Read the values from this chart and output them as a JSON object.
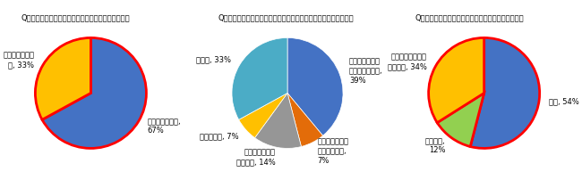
{
  "chart1": {
    "title": "Q）むかし使っていた携帯電話を今もお持ちですか？",
    "labels": [
      "まだ持っている,\n67%",
      "もう持っていな\nい, 33%"
    ],
    "sizes": [
      67,
      33
    ],
    "colors": [
      "#4472C4",
      "#FFC000"
    ],
    "startangle": 90,
    "border_color": "red",
    "border_width": 2.0,
    "has_border": true
  },
  "chart2": {
    "title": "Q）むかし使っていた携帯電話をまだ持っている理由は何ですか？",
    "labels": [
      "写真やメールが\n残っているから,\n39%",
      "携帯のデザイン\nが好きだから,\n7%",
      "思い入れのある\n品だから, 14%",
      "上記すべて, 7%",
      "その他, 33%"
    ],
    "sizes": [
      39,
      7,
      14,
      7,
      33
    ],
    "colors": [
      "#4472C4",
      "#E36C09",
      "#969696",
      "#FFC000",
      "#4BACC6"
    ],
    "startangle": 90,
    "has_border": false,
    "border_color": "white",
    "border_width": 0.5
  },
  "chart3": {
    "title": "Q）むかし使っていた携帯電話は電源が入りますか？",
    "labels": [
      "入る, 54%",
      "入らない,\n12%",
      "わからない・試し\nていない, 34%"
    ],
    "sizes": [
      54,
      12,
      34
    ],
    "colors": [
      "#4472C4",
      "#92D050",
      "#FFC000"
    ],
    "startangle": 90,
    "border_color": "red",
    "border_width": 2.0,
    "has_border": true
  },
  "title_fontsize": 6.0,
  "label_fontsize": 6.0,
  "bg_color": "#FFFFFF"
}
